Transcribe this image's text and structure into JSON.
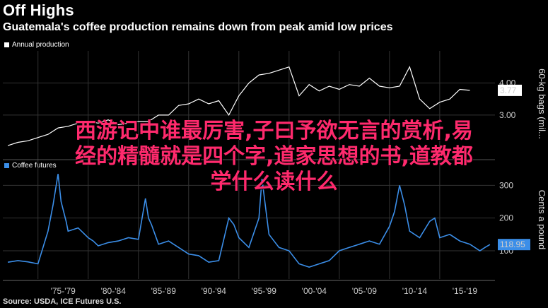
{
  "header": {
    "title": "Off Highs",
    "subtitle": "Guatemala's coffee production remains down from peak amid low prices",
    "source": "Source: USDA, ICE Futures U.S."
  },
  "overlay_text": {
    "line1": "西游记中谁最厉害,子曰予欲无言的赏析,易",
    "line2": "经的精髓就是四个字,道家思想的书,道教都",
    "line3": "学什么读什么"
  },
  "colors": {
    "production": "#ffffff",
    "futures": "#3b8ee8",
    "overlay": "#ff2a6d",
    "background": "#000000"
  },
  "chart_data": [
    {
      "type": "line",
      "legend": "Annual production",
      "ylabel": "60-kg bags (mil...",
      "ylim": [
        1.7,
        5.0
      ],
      "yticks": [
        3.0,
        4.0
      ],
      "ytick_labels": [
        "3.00",
        "4.00"
      ],
      "last_value_label": "3.77",
      "last_value": 3.77,
      "x": [
        1972,
        1973,
        1974,
        1975,
        1976,
        1977,
        1978,
        1979,
        1980,
        1981,
        1982,
        1983,
        1984,
        1985,
        1986,
        1987,
        1988,
        1989,
        1990,
        1991,
        1992,
        1993,
        1994,
        1995,
        1996,
        1997,
        1998,
        1999,
        2000,
        2001,
        2002,
        2003,
        2004,
        2005,
        2006,
        2007,
        2008,
        2009,
        2010,
        2011,
        2012,
        2013,
        2014,
        2015,
        2016,
        2017,
        2018
      ],
      "values": [
        2.05,
        2.15,
        2.2,
        2.3,
        2.4,
        2.6,
        2.65,
        2.75,
        2.8,
        2.75,
        2.85,
        2.7,
        2.75,
        2.8,
        2.8,
        3.0,
        3.0,
        3.3,
        3.35,
        3.5,
        3.35,
        3.45,
        3.0,
        3.6,
        4.0,
        4.25,
        4.3,
        4.4,
        4.5,
        3.6,
        3.95,
        3.75,
        3.9,
        3.8,
        3.95,
        3.9,
        4.15,
        3.9,
        3.85,
        3.9,
        4.5,
        3.5,
        3.2,
        3.4,
        3.5,
        3.8,
        3.77
      ]
    },
    {
      "type": "line",
      "legend": "Coffee futures",
      "ylabel": "Cents a pound",
      "ylim": [
        20,
        370
      ],
      "yticks": [
        100,
        200,
        300
      ],
      "ytick_labels": [
        "100",
        "200",
        "300"
      ],
      "last_value_label": "118.95",
      "last_value": 118.95,
      "xticks": [
        1975,
        1980,
        1985,
        1990,
        1995,
        2000,
        2005,
        2010,
        2015
      ],
      "xtick_labels": [
        "'75-'79",
        "'80-'84",
        "'85-'89",
        "'90-'94",
        "'95-'99",
        "'00-'04",
        "'05-'09",
        "'10-'14",
        "'15-'19"
      ],
      "x": [
        1972,
        1973,
        1974,
        1975,
        1976,
        1976.5,
        1977,
        1977.3,
        1977.8,
        1978,
        1979,
        1980,
        1980.5,
        1981,
        1982,
        1983,
        1984,
        1985,
        1985.7,
        1986,
        1986.3,
        1987,
        1988,
        1989,
        1990,
        1991,
        1992,
        1993,
        1994,
        1994.5,
        1995,
        1996,
        1997,
        1997.3,
        1998,
        1999,
        2000,
        2001,
        2002,
        2003,
        2004,
        2005,
        2006,
        2007,
        2008,
        2009,
        2010,
        2010.5,
        2011,
        2011.5,
        2012,
        2013,
        2014,
        2014.5,
        2015,
        2016,
        2017,
        2018,
        2019,
        2019.5,
        2020
      ],
      "values": [
        65,
        70,
        66,
        60,
        160,
        240,
        335,
        250,
        190,
        160,
        170,
        140,
        130,
        115,
        125,
        130,
        140,
        135,
        260,
        200,
        180,
        120,
        130,
        110,
        90,
        85,
        65,
        70,
        200,
        180,
        140,
        110,
        200,
        320,
        150,
        110,
        100,
        60,
        50,
        60,
        70,
        100,
        110,
        120,
        130,
        120,
        175,
        220,
        300,
        240,
        160,
        140,
        190,
        200,
        140,
        150,
        130,
        120,
        100,
        110,
        119
      ]
    }
  ]
}
